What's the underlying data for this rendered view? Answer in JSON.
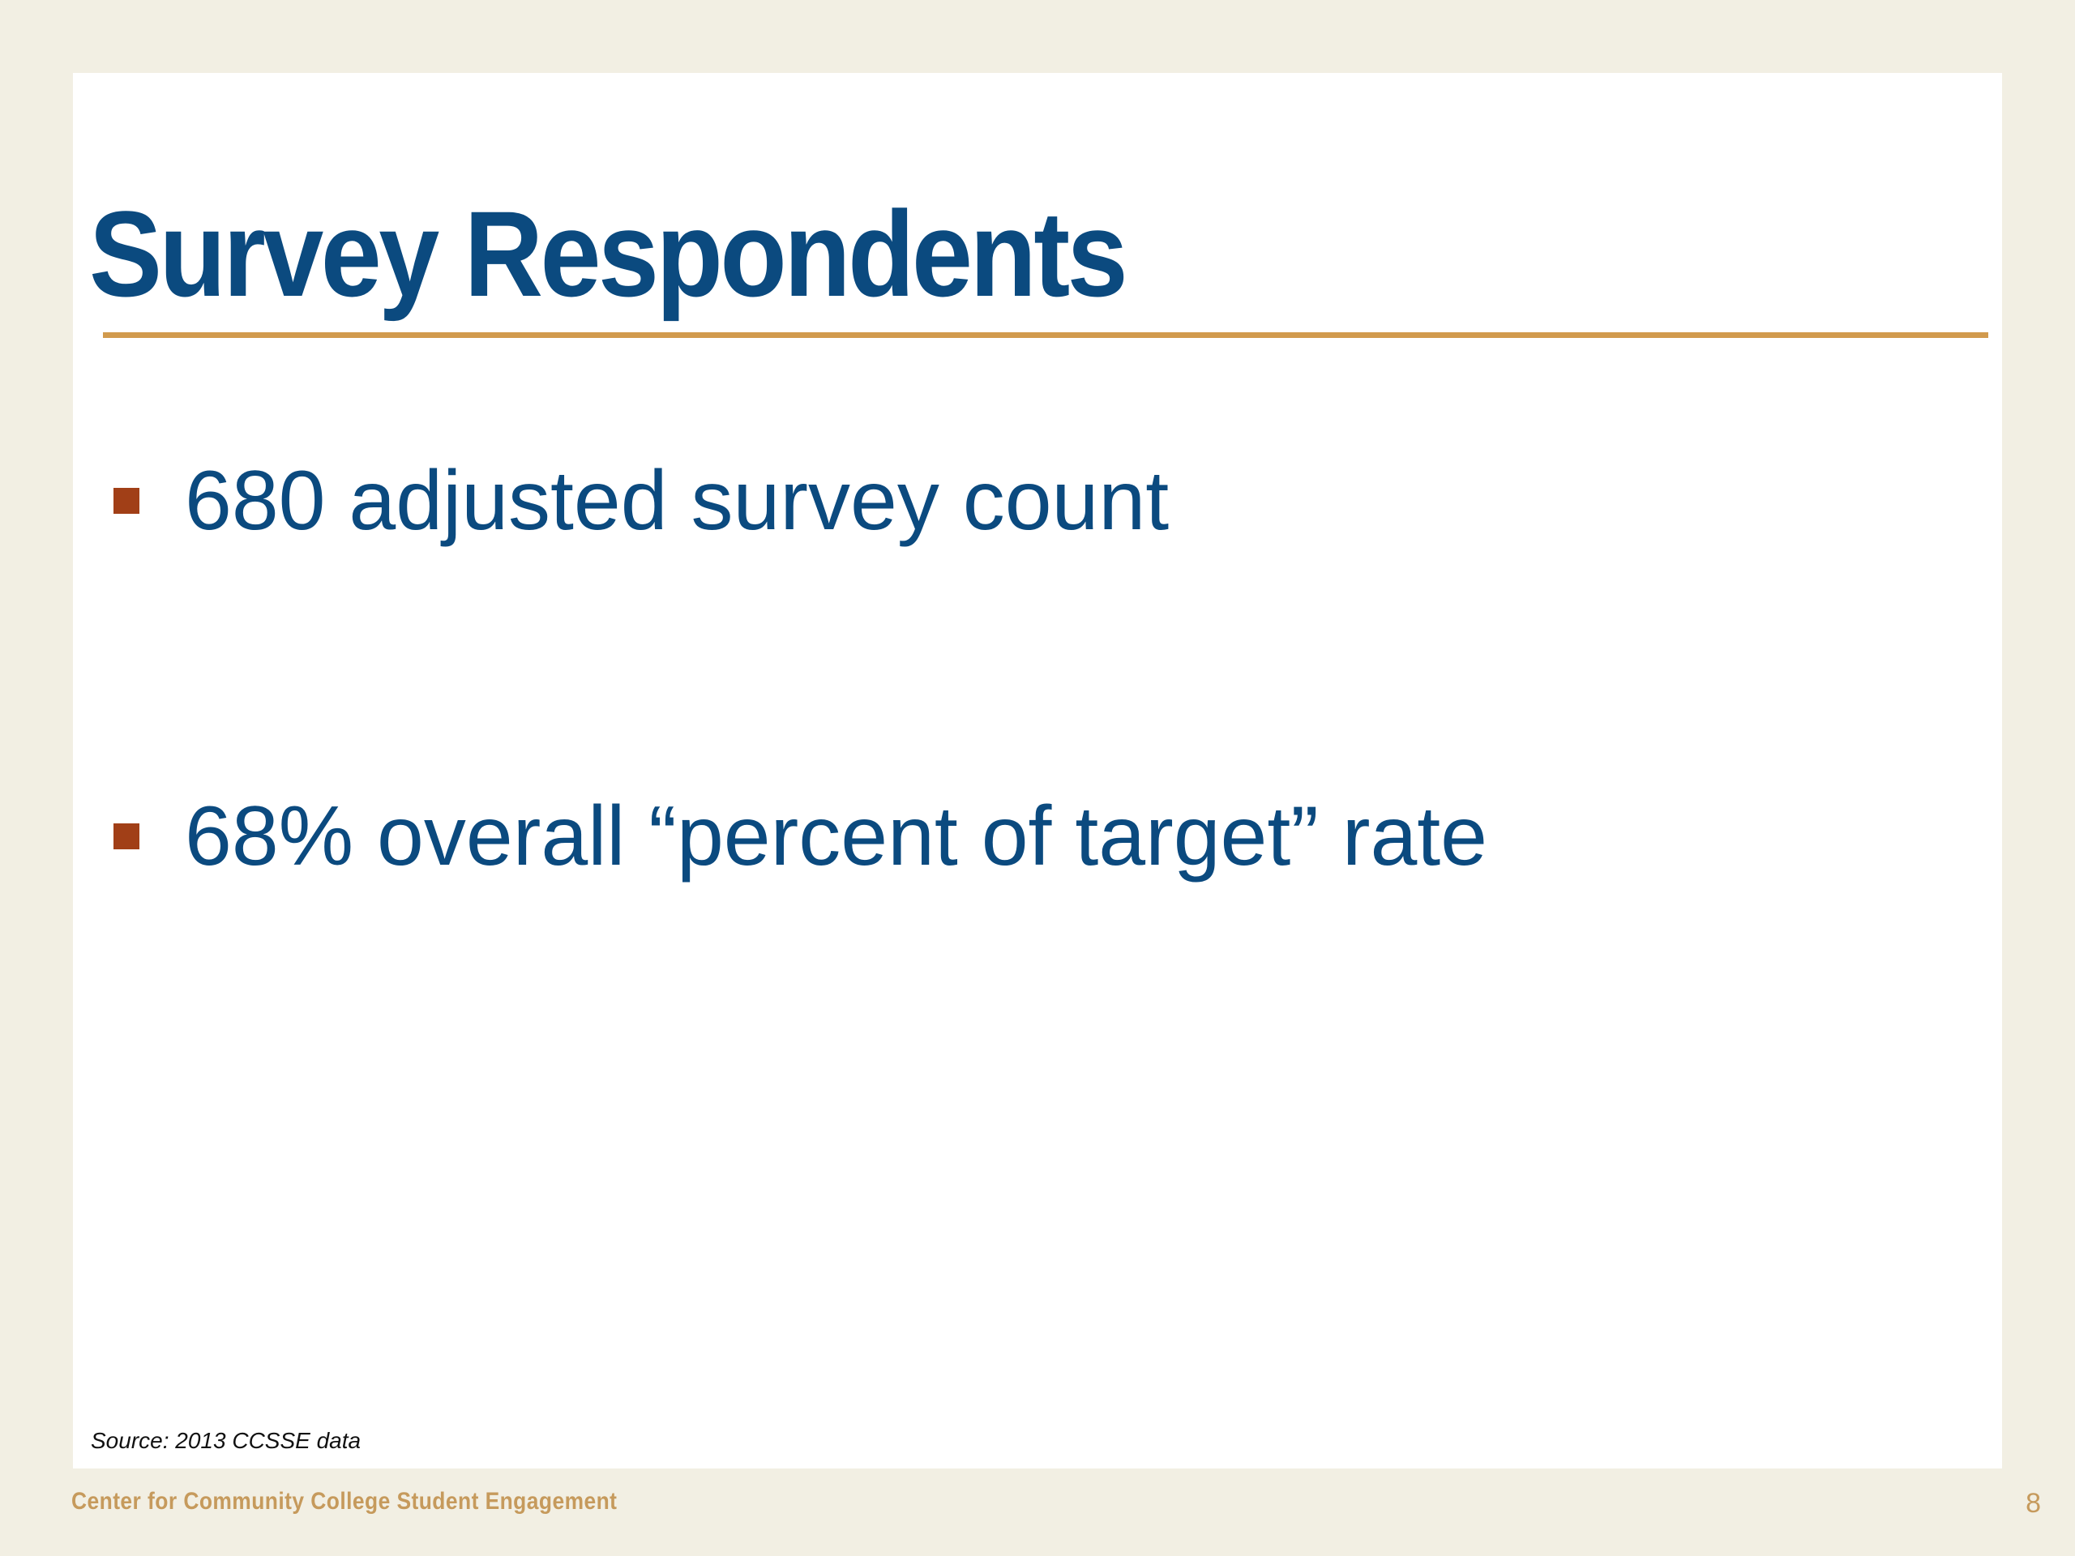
{
  "slide": {
    "title": "Survey Respondents",
    "bullets": [
      "680 adjusted survey count",
      "68% overall “percent of target” rate"
    ],
    "source": "Source: 2013 CCSSE data"
  },
  "footer": {
    "organization": "Center for Community College Student Engagement",
    "page_number": "8"
  },
  "colors": {
    "background": "#f2efe3",
    "title": "#0b4a7f",
    "rule": "#d19a4d",
    "bullet_marker": "#a13f17",
    "footer_text": "#c69a5c"
  }
}
